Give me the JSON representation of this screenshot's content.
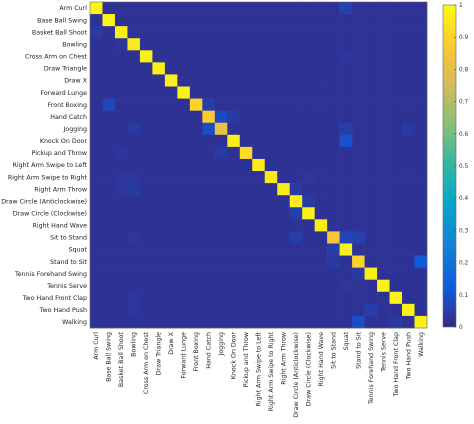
{
  "chart_data": {
    "type": "heatmap",
    "title": "",
    "xlabel": "",
    "ylabel": "",
    "row_labels": [
      "Arm Curl",
      "Base Ball Swing",
      "Basket Ball Shoot",
      "Bowling",
      "Cross Arm on Chest",
      "Draw Triangle",
      "Draw X",
      "Forward Lunge",
      "Front Boxing",
      "Hand Catch",
      "Jogging",
      "Knock On Door",
      "Pickup and Throw",
      "Right Arm Swipe to Left",
      "Right Arm Swipe to Right",
      "Right Arm Throw",
      "Draw Circle (Anticlockwise)",
      "Draw Circle (Clockwise)",
      "Right Hand Wave",
      "Sit to Stand",
      "Squat",
      "Stand to Sit",
      "Tennis Forehand Swing",
      "Tennis Serve",
      "Two Hand Front Clap",
      "Two Hand Push",
      "Walking"
    ],
    "col_labels": [
      "Arm Curl",
      "Base Ball Swing",
      "Basket Ball Shoot",
      "Bowling",
      "Cross Arm on Chest",
      "Draw Triangle",
      "Draw X",
      "Forward Lunge",
      "Front Boxing",
      "Hand Catch",
      "Jogging",
      "Knock On Door",
      "Pickup and Throw",
      "Right Arm Swipe to Left",
      "Right Arm Swipe to Right",
      "Right Arm Throw",
      "Draw Circle (Anticlockwise)",
      "Draw Circle (Clockwise)",
      "Right Hand Wave",
      "Sit to Stand",
      "Squat",
      "Stand to Sit",
      "Tennis Forehand Swing",
      "Tennis Serve",
      "Two Hand Front Clap",
      "Two Hand Push",
      "Walking"
    ],
    "diagonal": [
      0.98,
      0.98,
      0.97,
      0.96,
      0.97,
      0.97,
      0.97,
      0.98,
      0.9,
      0.88,
      0.82,
      0.97,
      0.92,
      0.96,
      0.95,
      0.96,
      0.96,
      0.97,
      0.96,
      0.85,
      0.98,
      0.9,
      0.97,
      0.98,
      0.98,
      0.98,
      0.97
    ],
    "off_diagonal": [
      {
        "row": 0,
        "col": 20,
        "value": 0.06
      },
      {
        "row": 2,
        "col": 0,
        "value": 0.04
      },
      {
        "row": 3,
        "col": 2,
        "value": 0.03
      },
      {
        "row": 4,
        "col": 20,
        "value": 0.03
      },
      {
        "row": 8,
        "col": 1,
        "value": 0.07
      },
      {
        "row": 8,
        "col": 9,
        "value": 0.05
      },
      {
        "row": 9,
        "col": 10,
        "value": 0.08
      },
      {
        "row": 9,
        "col": 11,
        "value": 0.04
      },
      {
        "row": 10,
        "col": 9,
        "value": 0.09
      },
      {
        "row": 10,
        "col": 3,
        "value": 0.04
      },
      {
        "row": 10,
        "col": 20,
        "value": 0.05
      },
      {
        "row": 10,
        "col": 25,
        "value": 0.04
      },
      {
        "row": 11,
        "col": 20,
        "value": 0.1
      },
      {
        "row": 12,
        "col": 2,
        "value": 0.03
      },
      {
        "row": 12,
        "col": 10,
        "value": 0.04
      },
      {
        "row": 14,
        "col": 2,
        "value": 0.03
      },
      {
        "row": 14,
        "col": 3,
        "value": 0.03
      },
      {
        "row": 14,
        "col": 17,
        "value": 0.03
      },
      {
        "row": 15,
        "col": 2,
        "value": 0.03
      },
      {
        "row": 15,
        "col": 3,
        "value": 0.04
      },
      {
        "row": 15,
        "col": 16,
        "value": 0.04
      },
      {
        "row": 16,
        "col": 17,
        "value": 0.04
      },
      {
        "row": 17,
        "col": 16,
        "value": 0.05
      },
      {
        "row": 19,
        "col": 16,
        "value": 0.05
      },
      {
        "row": 19,
        "col": 20,
        "value": 0.07
      },
      {
        "row": 19,
        "col": 3,
        "value": 0.03
      },
      {
        "row": 19,
        "col": 21,
        "value": 0.06
      },
      {
        "row": 20,
        "col": 19,
        "value": 0.05
      },
      {
        "row": 21,
        "col": 26,
        "value": 0.12
      },
      {
        "row": 21,
        "col": 19,
        "value": 0.04
      },
      {
        "row": 22,
        "col": 21,
        "value": 0.04
      },
      {
        "row": 23,
        "col": 20,
        "value": 0.03
      },
      {
        "row": 25,
        "col": 22,
        "value": 0.05
      },
      {
        "row": 26,
        "col": 21,
        "value": 0.09
      },
      {
        "row": 26,
        "col": 24,
        "value": 0.04
      },
      {
        "row": 24,
        "col": 3,
        "value": 0.03
      },
      {
        "row": 25,
        "col": 3,
        "value": 0.03
      }
    ],
    "background_value": 0.02,
    "colorbar": {
      "colormap": "parula",
      "range": [
        0,
        1
      ],
      "ticks": [
        "0",
        "0.1",
        "0.2",
        "0.3",
        "0.4",
        "0.5",
        "0.6",
        "0.7",
        "0.8",
        "0.9",
        "1"
      ]
    },
    "grid": false
  }
}
